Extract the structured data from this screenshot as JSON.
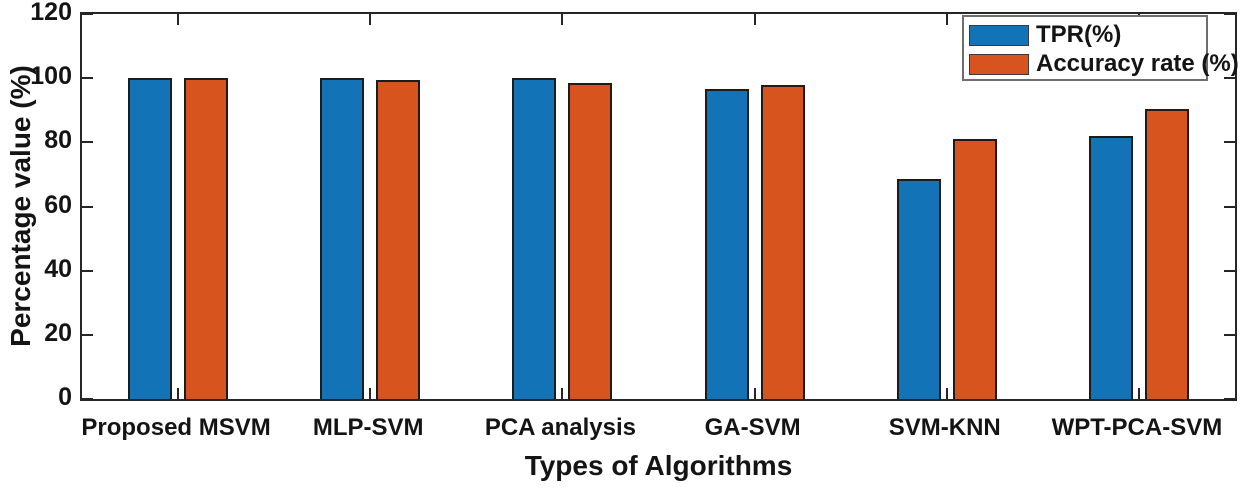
{
  "chart_data": {
    "type": "bar",
    "title": "",
    "xlabel": "Types of Algorithms",
    "ylabel": "Percentage value (%)",
    "categories": [
      "Proposed MSVM",
      "MLP-SVM",
      "PCA analysis",
      "GA-SVM",
      "SVM-KNN",
      "WPT-PCA-SVM"
    ],
    "series": [
      {
        "name": "TPR(%)",
        "color": "#1373B7",
        "values": [
          100,
          100,
          100,
          96.5,
          68.5,
          82
        ]
      },
      {
        "name": "Accuracy rate (%)",
        "color": "#D8541F",
        "values": [
          100,
          99.5,
          98.5,
          98,
          81,
          90.5
        ]
      }
    ],
    "ylim": [
      0,
      120
    ],
    "yticks": [
      0,
      20,
      40,
      60,
      80,
      100,
      120
    ],
    "grid": false,
    "legend_position": "top-right",
    "axis_color": "#262626",
    "bar_edge_color": "#1c1c1c"
  }
}
